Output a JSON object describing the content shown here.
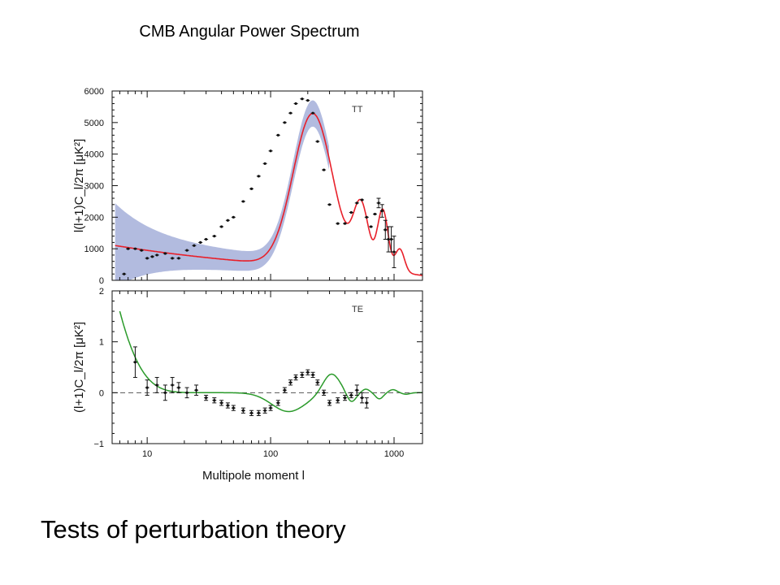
{
  "slide": {
    "title": "CMB Angular Power Spectrum",
    "caption": "Tests of perturbation theory"
  },
  "colors": {
    "tt_model": "#e8202a",
    "tt_band": "#aab4dc",
    "te_model": "#2a9a2a",
    "points": "#111111",
    "zero_line": "#555555"
  },
  "chart_data": [
    {
      "type": "scatter",
      "panel": "TT",
      "ylabel": "l(l+1)C_l/2π [μK²]",
      "xlabel": "",
      "xscale": "log",
      "xlim": [
        5.2,
        1700
      ],
      "ylim": [
        0,
        6000
      ],
      "yticks": [
        0,
        1000,
        2000,
        3000,
        4000,
        5000,
        6000
      ],
      "ytick_labels": [
        "0",
        "1000",
        "2000",
        "3000",
        "4000",
        "5000",
        "6000"
      ],
      "xticks_major": [
        10,
        100,
        1000
      ],
      "series": [
        {
          "kind": "points",
          "x": [
            6.5,
            7,
            8,
            9,
            10,
            11,
            12,
            14,
            16,
            18,
            21,
            24,
            27,
            30,
            35,
            40,
            45,
            50,
            60,
            70,
            80,
            90,
            100,
            115,
            130,
            145,
            160,
            180,
            200,
            220,
            240,
            270,
            300,
            350,
            400,
            450,
            500,
            550,
            600,
            650,
            700,
            750,
            800,
            850,
            900,
            950,
            1000
          ],
          "y": [
            200,
            1000,
            1000,
            950,
            700,
            750,
            800,
            850,
            700,
            700,
            950,
            1100,
            1200,
            1300,
            1400,
            1700,
            1900,
            2000,
            2500,
            2900,
            3300,
            3700,
            4100,
            4600,
            5000,
            5300,
            5600,
            5750,
            5700,
            5300,
            4400,
            3500,
            2400,
            1800,
            1800,
            2150,
            2450,
            2550,
            2000,
            1700,
            2100,
            2450,
            2200,
            1600,
            1300,
            1300,
            900
          ],
          "yerr": [
            0,
            0,
            0,
            0,
            0,
            0,
            0,
            0,
            0,
            0,
            0,
            0,
            0,
            0,
            0,
            0,
            0,
            0,
            0,
            0,
            0,
            0,
            0,
            0,
            0,
            0,
            0,
            0,
            0,
            0,
            0,
            0,
            0,
            0,
            0,
            0,
            0,
            0,
            0,
            0,
            0,
            150,
            200,
            300,
            400,
            400,
            500
          ]
        }
      ],
      "annotations": [
        "TT"
      ]
    },
    {
      "type": "scatter",
      "panel": "TE",
      "ylabel": "(l+1)C_l/2π [μK²]",
      "xlabel": "Multipole moment l",
      "xscale": "log",
      "xlim": [
        5.2,
        1700
      ],
      "ylim": [
        -1,
        2
      ],
      "yticks": [
        -1,
        0,
        1,
        2
      ],
      "ytick_labels": [
        "−1",
        "0",
        "1",
        "2"
      ],
      "xticks_major": [
        10,
        100,
        1000
      ],
      "xtick_labels": [
        "10",
        "100",
        "1000"
      ],
      "series": [
        {
          "kind": "points",
          "x": [
            8,
            10,
            12,
            14,
            16,
            18,
            21,
            25,
            30,
            35,
            40,
            45,
            50,
            60,
            70,
            80,
            90,
            100,
            115,
            130,
            145,
            160,
            180,
            200,
            220,
            240,
            270,
            300,
            350,
            400,
            450,
            500,
            550,
            600
          ],
          "y": [
            0.6,
            0.1,
            0.15,
            0.0,
            0.15,
            0.1,
            0.0,
            0.05,
            -0.1,
            -0.15,
            -0.2,
            -0.25,
            -0.3,
            -0.35,
            -0.4,
            -0.4,
            -0.35,
            -0.3,
            -0.2,
            0.05,
            0.2,
            0.3,
            0.35,
            0.4,
            0.35,
            0.2,
            0.0,
            -0.2,
            -0.15,
            -0.1,
            -0.05,
            0.05,
            -0.1,
            -0.2
          ],
          "yerr": [
            0.3,
            0.15,
            0.15,
            0.15,
            0.15,
            0.1,
            0.1,
            0.1,
            0.05,
            0.05,
            0.05,
            0.05,
            0.05,
            0.05,
            0.05,
            0.05,
            0.05,
            0.05,
            0.05,
            0.05,
            0.05,
            0.05,
            0.05,
            0.05,
            0.05,
            0.05,
            0.05,
            0.05,
            0.05,
            0.05,
            0.05,
            0.1,
            0.1,
            0.1
          ]
        }
      ],
      "annotations": [
        "TE"
      ]
    }
  ]
}
